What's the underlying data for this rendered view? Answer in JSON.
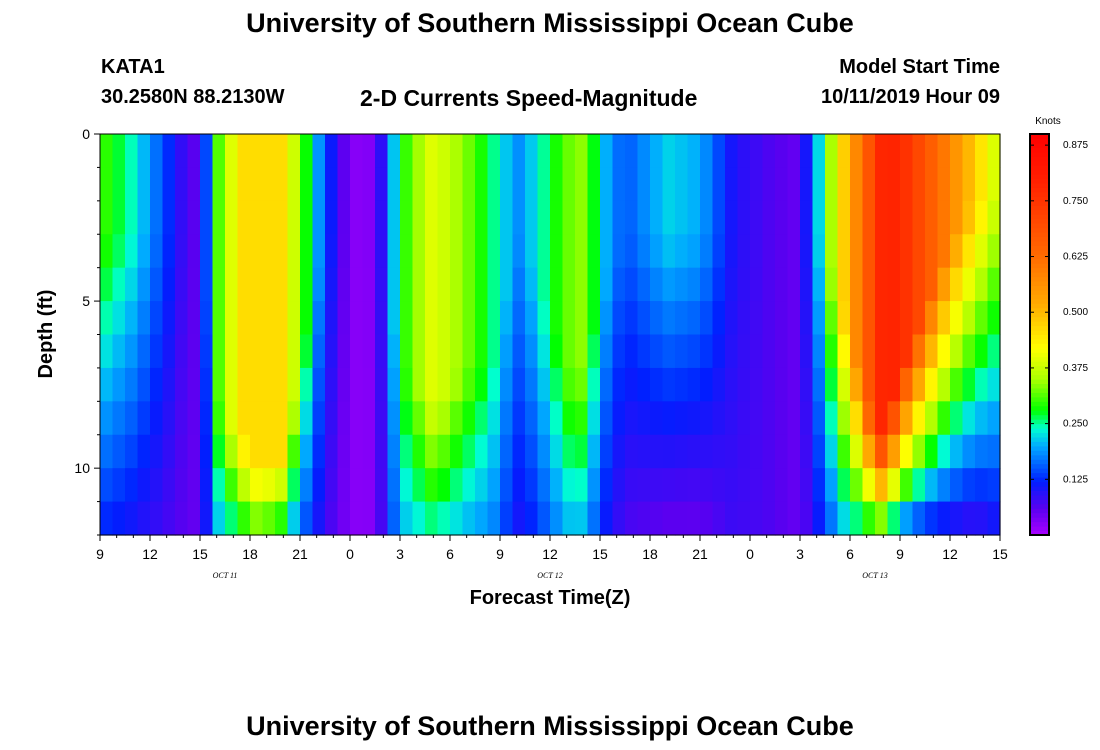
{
  "header": {
    "title_top": "University of Southern Mississippi Ocean Cube",
    "title_bottom": "University of Southern Mississippi Ocean Cube",
    "station_id": "KATA1",
    "station_coords": "30.2580N 88.2130W",
    "plot_title": "2-D Currents Speed-Magnitude",
    "model_start_label": "Model Start Time",
    "model_start_value": "10/11/2019 Hour 09"
  },
  "chart_data": {
    "type": "heatmap",
    "title": "2-D Currents Speed-Magnitude",
    "xlabel": "Forecast Time(Z)",
    "ylabel": "Depth (ft)",
    "units_label": "Knots",
    "x_hours_range": [
      0,
      54
    ],
    "x_tick_labels": [
      "9",
      "12",
      "15",
      "18",
      "21",
      "0",
      "3",
      "6",
      "9",
      "12",
      "15",
      "18",
      "21",
      "0",
      "3",
      "6",
      "9",
      "12",
      "15"
    ],
    "date_labels": [
      {
        "text": "OCT 11",
        "hour": 7.5
      },
      {
        "text": "OCT 12",
        "hour": 27
      },
      {
        "text": "OCT 13",
        "hour": 46.5
      }
    ],
    "y_range": [
      0,
      12
    ],
    "y_ticks": [
      0,
      5,
      10
    ],
    "y_tick_labels": [
      "0",
      "5",
      "10"
    ],
    "colorbar": {
      "range": [
        0,
        0.9
      ],
      "ticks": [
        0.125,
        0.25,
        0.375,
        0.5,
        0.625,
        0.75,
        0.875
      ],
      "tick_labels": [
        "0.125",
        "0.250",
        "0.375",
        "0.500",
        "0.625",
        "0.750",
        "0.875"
      ]
    },
    "profile_hours": [
      0,
      2,
      3.5,
      5,
      6,
      7,
      8.5,
      9.5,
      11,
      12,
      13.5,
      15,
      16,
      17,
      18,
      20,
      22,
      23.5,
      25,
      26,
      28,
      29,
      30.5,
      31.5,
      34,
      36,
      38,
      40,
      42,
      43,
      44.5,
      46,
      47,
      48,
      49.5,
      51,
      52.5,
      54
    ],
    "surface_knots": [
      0.31,
      0.24,
      0.16,
      0.08,
      0.05,
      0.3,
      0.46,
      0.46,
      0.46,
      0.33,
      0.14,
      0.03,
      0.02,
      0.1,
      0.28,
      0.4,
      0.33,
      0.26,
      0.18,
      0.22,
      0.32,
      0.34,
      0.19,
      0.15,
      0.22,
      0.2,
      0.1,
      0.07,
      0.05,
      0.2,
      0.46,
      0.66,
      0.8,
      0.78,
      0.68,
      0.58,
      0.48,
      0.36
    ],
    "bottom_knots": [
      0.12,
      0.1,
      0.08,
      0.06,
      0.05,
      0.2,
      0.26,
      0.3,
      0.25,
      0.16,
      0.08,
      0.03,
      0.02,
      0.08,
      0.2,
      0.24,
      0.2,
      0.18,
      0.1,
      0.12,
      0.2,
      0.2,
      0.1,
      0.07,
      0.05,
      0.05,
      0.08,
      0.07,
      0.05,
      0.1,
      0.2,
      0.24,
      0.25,
      0.15,
      0.1,
      0.08,
      0.07,
      0.1
    ],
    "core_depth_ft": [
      3,
      3,
      3,
      3,
      3,
      8,
      9,
      10,
      9.5,
      7,
      3,
      3,
      3,
      3,
      7,
      8,
      7,
      7,
      3,
      4,
      7,
      7,
      4,
      3,
      3,
      3,
      3,
      3,
      3,
      3,
      5,
      8,
      9,
      7,
      5,
      3,
      2,
      2
    ]
  }
}
